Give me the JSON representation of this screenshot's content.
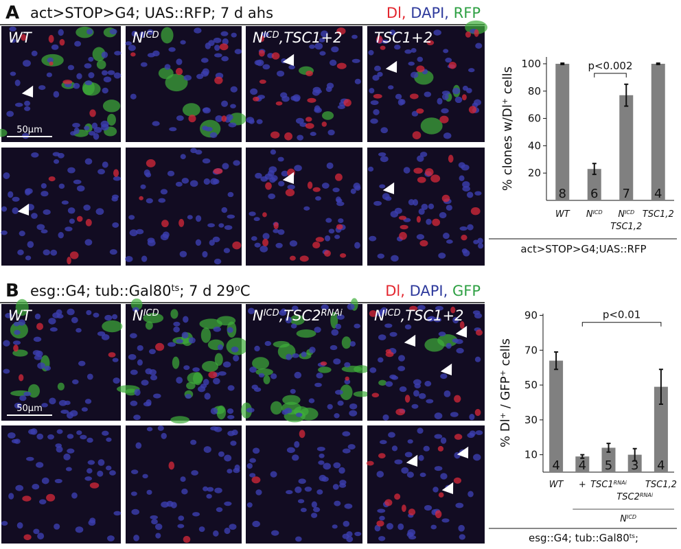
{
  "panels": [
    {
      "letter": "A",
      "header": [
        {
          "text": "act>STOP>G4; UAS::RFP; 7 d ahs"
        }
      ],
      "stains": [
        {
          "text": "Dl,",
          "color": "#e3262e"
        },
        {
          "text": " DAPI,",
          "color": "#2e3a9c"
        },
        {
          "text": " RFP",
          "color": "#2ea043"
        }
      ],
      "image_labels": [
        [
          {
            "text": "WT"
          }
        ],
        [
          {
            "text": "N"
          },
          {
            "text": "ICD",
            "sup": true
          }
        ],
        [
          {
            "text": "N"
          },
          {
            "text": "ICD",
            "sup": true
          },
          {
            "text": ",TSC1+2"
          }
        ],
        [
          {
            "text": "TSC1+2"
          }
        ]
      ],
      "scale_bar": "50µm"
    },
    {
      "letter": "B",
      "header": [
        {
          "text": "esg::G4; tub::Gal80"
        },
        {
          "text": "ts",
          "sup": true
        },
        {
          "text": "; 7 d 29"
        },
        {
          "text": "o",
          "sup": true
        },
        {
          "text": "C"
        }
      ],
      "stains": [
        {
          "text": "Dl,",
          "color": "#e3262e"
        },
        {
          "text": " DAPI,",
          "color": "#2e3a9c"
        },
        {
          "text": " GFP",
          "color": "#2ea043"
        }
      ],
      "image_labels": [
        [
          {
            "text": "WT"
          }
        ],
        [
          {
            "text": "N"
          },
          {
            "text": "ICD",
            "sup": true
          }
        ],
        [
          {
            "text": "N"
          },
          {
            "text": "ICD",
            "sup": true
          },
          {
            "text": ",TSC2"
          },
          {
            "text": "RNAi",
            "sup": true
          }
        ],
        [
          {
            "text": "N"
          },
          {
            "text": "ICD",
            "sup": true
          },
          {
            "text": ",TSC1+2"
          }
        ]
      ],
      "scale_bar": "50µm"
    }
  ],
  "chart_data": [
    {
      "type": "bar",
      "y_label": [
        {
          "text": "% clones w/Dl"
        },
        {
          "text": "+",
          "sup": true
        },
        {
          "text": " cells"
        }
      ],
      "categories": [
        [
          [
            {
              "text": "WT"
            }
          ]
        ],
        [
          [
            {
              "text": "N"
            },
            {
              "text": "ICD",
              "sup": true
            }
          ]
        ],
        [
          [
            {
              "text": "N"
            },
            {
              "text": "ICD",
              "sup": true
            }
          ],
          [
            {
              "text": "TSC1,2"
            }
          ]
        ],
        [
          [
            {
              "text": "TSC1,2"
            }
          ]
        ]
      ],
      "values": [
        100,
        23,
        77,
        100
      ],
      "errors": [
        0.5,
        4,
        8,
        0.5
      ],
      "n_labels": [
        "8",
        "6",
        "7",
        "4"
      ],
      "color": "#808080",
      "ylim": [
        0,
        105
      ],
      "yticks": [
        20,
        40,
        60,
        80,
        100
      ],
      "annotation": "p<0.002",
      "footer": [
        {
          "text": "act>STOP>G4;UAS::RFP"
        }
      ]
    },
    {
      "type": "bar",
      "y_label": [
        {
          "text": "% Dl"
        },
        {
          "text": "+",
          "sup": true
        },
        {
          "text": " / GFP"
        },
        {
          "text": "+",
          "sup": true
        },
        {
          "text": " cells"
        }
      ],
      "categories": [
        [
          [
            {
              "text": "WT"
            }
          ]
        ],
        [
          [
            {
              "text": "+"
            }
          ]
        ],
        [
          [
            {
              "text": "TSC1"
            },
            {
              "text": "RNAi",
              "sup": true
            }
          ]
        ],
        [
          [
            {
              "text": "TSC2"
            },
            {
              "text": "RNAi",
              "sup": true
            }
          ]
        ],
        [
          [
            {
              "text": "TSC1,2"
            }
          ]
        ]
      ],
      "values": [
        64,
        9,
        14,
        10,
        49
      ],
      "errors": [
        5,
        1,
        2.5,
        3.5,
        10
      ],
      "n_labels": [
        "4",
        "4",
        "5",
        "3",
        "4"
      ],
      "color": "#808080",
      "ylim": [
        0,
        91
      ],
      "yticks": [
        10,
        30,
        50,
        70,
        90
      ],
      "annotation": "p<0.01",
      "group_label": [
        {
          "text": "N"
        },
        {
          "text": "ICD",
          "sup": true
        }
      ],
      "footer": [
        {
          "text": "esg::G4; tub::Gal80"
        },
        {
          "text": "ts",
          "sup": true
        },
        {
          "text": ";"
        }
      ]
    }
  ]
}
